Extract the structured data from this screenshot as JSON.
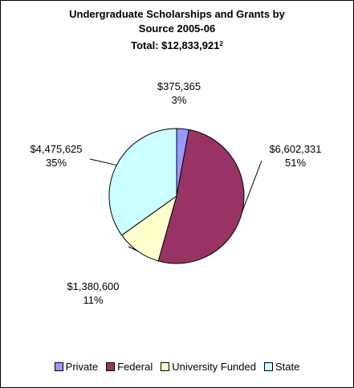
{
  "chart_data": {
    "type": "pie",
    "title": "Undergraduate Scholarships and Grants by Source 2005-06",
    "title_lines": [
      "Undergraduate Scholarships and Grants by",
      "Source 2005-06"
    ],
    "subtitle": "Total: $12,833,921",
    "subtitle_footnote": "2",
    "categories": [
      "Private",
      "Federal",
      "University Funded",
      "State"
    ],
    "values": [
      375365,
      6602331,
      1380600,
      4475625
    ],
    "value_labels": [
      "$375,365",
      "$6,602,331",
      "$1,380,600",
      "$4,475,625"
    ],
    "percent_labels": [
      "3%",
      "51%",
      "11%",
      "35%"
    ],
    "colors": [
      "#9999FF",
      "#993366",
      "#FFFFCC",
      "#CCFFFF"
    ],
    "legend_position": "bottom"
  }
}
